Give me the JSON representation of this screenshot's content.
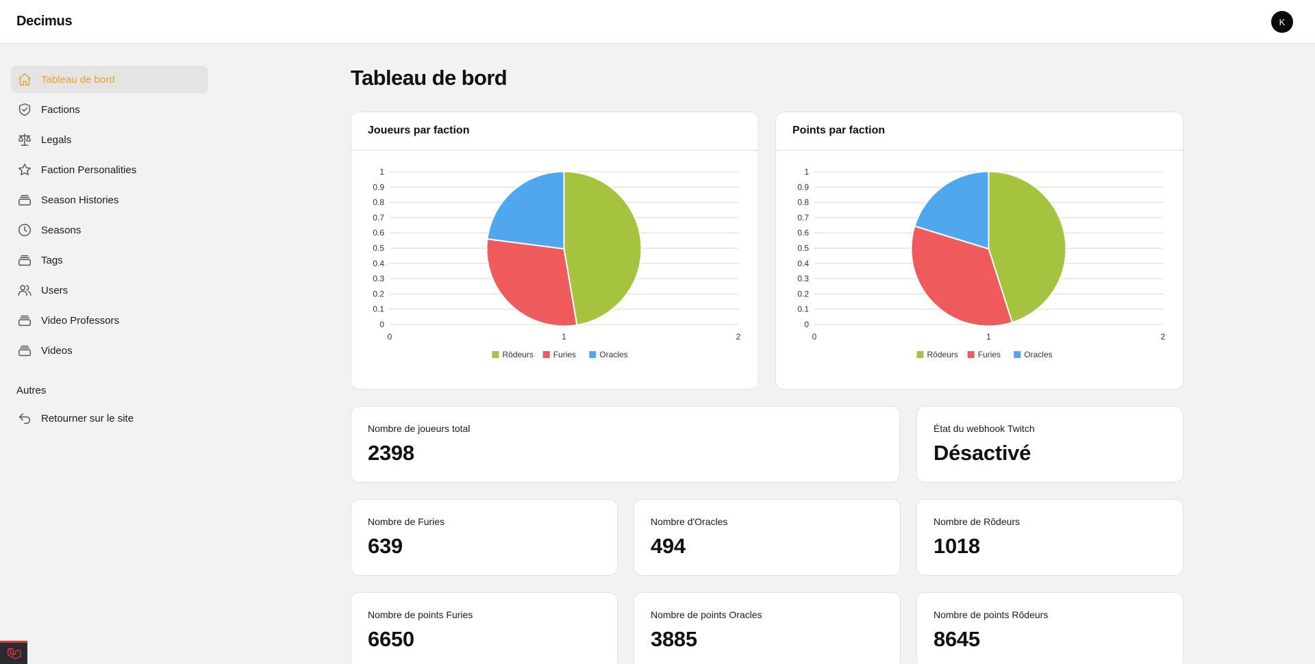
{
  "app": {
    "brand": "Decimus",
    "avatar_initial": "K"
  },
  "sidebar": {
    "items": [
      {
        "label": "Tableau de bord",
        "icon": "home-icon",
        "active": true
      },
      {
        "label": "Factions",
        "icon": "shield-check-icon"
      },
      {
        "label": "Legals",
        "icon": "scale-icon"
      },
      {
        "label": "Faction Personalities",
        "icon": "star-icon"
      },
      {
        "label": "Season Histories",
        "icon": "stack-icon"
      },
      {
        "label": "Seasons",
        "icon": "clock-icon"
      },
      {
        "label": "Tags",
        "icon": "stack-icon"
      },
      {
        "label": "Users",
        "icon": "users-icon"
      },
      {
        "label": "Video Professors",
        "icon": "stack-icon"
      },
      {
        "label": "Videos",
        "icon": "stack-icon"
      }
    ],
    "others_title": "Autres",
    "others_items": [
      {
        "label": "Retourner sur le site",
        "icon": "return-arrow-icon"
      }
    ]
  },
  "main": {
    "title": "Tableau de bord",
    "charts": [
      {
        "title": "Joueurs par faction"
      },
      {
        "title": "Points par faction"
      }
    ],
    "stats": {
      "total_players": {
        "label": "Nombre de joueurs total",
        "value": "2398"
      },
      "webhook": {
        "label": "État du webhook Twitch",
        "value": "Désactivé"
      },
      "furies": {
        "label": "Nombre de Furies",
        "value": "639"
      },
      "oracles": {
        "label": "Nombre d'Oracles",
        "value": "494"
      },
      "rodeurs": {
        "label": "Nombre de Rôdeurs",
        "value": "1018"
      },
      "points_furies": {
        "label": "Nombre de points Furies",
        "value": "6650"
      },
      "points_oracles": {
        "label": "Nombre de points Oracles",
        "value": "3885"
      },
      "points_rodeurs": {
        "label": "Nombre de points Rôdeurs",
        "value": "8645"
      }
    }
  },
  "colors": {
    "accent": "#f0a02a",
    "rodeurs": "#a5c33f",
    "furies": "#ef5a5c",
    "oracles": "#4fa8ee"
  },
  "chart_data": [
    {
      "type": "pie",
      "title": "Joueurs par faction",
      "categories": [
        "Rôdeurs",
        "Furies",
        "Oracles"
      ],
      "values": [
        1018,
        639,
        494
      ],
      "colors": [
        "#a5c33f",
        "#ef5a5c",
        "#4fa8ee"
      ],
      "x_ticks": [
        "0",
        "1",
        "2"
      ],
      "y_ticks": [
        "0",
        "0.1",
        "0.2",
        "0.3",
        "0.4",
        "0.5",
        "0.6",
        "0.7",
        "0.8",
        "0.9",
        "1"
      ],
      "legend": "bottom",
      "grid": true
    },
    {
      "type": "pie",
      "title": "Points par faction",
      "categories": [
        "Rôdeurs",
        "Furies",
        "Oracles"
      ],
      "values": [
        8645,
        6650,
        3885
      ],
      "colors": [
        "#a5c33f",
        "#ef5a5c",
        "#4fa8ee"
      ],
      "x_ticks": [
        "0",
        "1",
        "2"
      ],
      "y_ticks": [
        "0",
        "0.1",
        "0.2",
        "0.3",
        "0.4",
        "0.5",
        "0.6",
        "0.7",
        "0.8",
        "0.9",
        "1"
      ],
      "legend": "bottom",
      "grid": true
    }
  ]
}
